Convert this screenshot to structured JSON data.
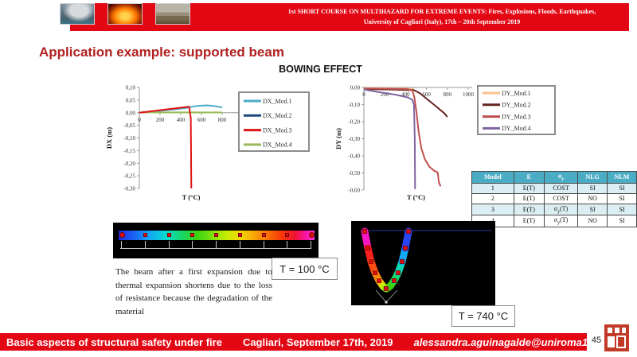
{
  "header": {
    "line1": "1st SHORT COURSE ON MULTIHAZARD FOR EXTREME EVENTS: Fires, Explosions, Floods, Earthquakes,",
    "line2": "University of Cagliari (Italy), 17th – 20th September 2019",
    "photos": [
      "volcanic-eruption-photo",
      "fire-photo",
      "flood-photo"
    ]
  },
  "slide": {
    "title": "Application example: supported beam",
    "section_heading": "BOWING EFFECT",
    "page_number": "45"
  },
  "annotations": {
    "t100": "T = 100 °C",
    "t740": "T = 740 °C",
    "paragraph": "The beam after a first expansion due to thermal expansion shortens due to the loss of resistance because the degradation of the material"
  },
  "model_table": {
    "headers": [
      "Model",
      "E",
      "σy",
      "NLG",
      "NLM"
    ],
    "rows": [
      [
        "1",
        "E(T)",
        "COST",
        "SI",
        "SI"
      ],
      [
        "2",
        "E(T)",
        "COST",
        "NO",
        "SI"
      ],
      [
        "3",
        "E(T)",
        "σy(T)",
        "SI",
        "SI"
      ],
      [
        "4",
        "E(T)",
        "σy(T)",
        "NO",
        "SI"
      ]
    ],
    "header_bg": "#4BACC6",
    "alt_row_bg": "#DAEEF3"
  },
  "chart_data": [
    {
      "id": "dx",
      "type": "line",
      "title": "",
      "xlabel": "T (°C)",
      "ylabel": "DX  (m)",
      "xlim": [
        0,
        1000
      ],
      "ylim": [
        -0.3,
        0.1
      ],
      "xticks": [
        0,
        200,
        400,
        600,
        800,
        1000
      ],
      "ytick_values": [
        0.1,
        0.05,
        0.0,
        -0.05,
        -0.1,
        -0.15,
        -0.2,
        -0.25,
        -0.3
      ],
      "ytick_labels": [
        "0,10",
        "0,05",
        "0,00",
        "-0,05",
        "-0,10",
        "-0,15",
        "-0,20",
        "-0,25",
        "-0,30"
      ],
      "grid": false,
      "legend_position": "right",
      "legend": [
        "DX_Mod.1",
        "DX_Mod.2",
        "DX_Mod.3",
        "DX_Mod.4"
      ],
      "series": [
        {
          "name": "DX_Mod.1",
          "color": "#4BACC6",
          "z": 2,
          "points": [
            [
              0,
              0
            ],
            [
              100,
              0.004
            ],
            [
              200,
              0.008
            ],
            [
              300,
              0.012
            ],
            [
              400,
              0.017
            ],
            [
              470,
              0.021
            ],
            [
              560,
              0.027
            ],
            [
              650,
              0.029
            ],
            [
              720,
              0.027
            ],
            [
              800,
              0.021
            ]
          ]
        },
        {
          "name": "DX_Mod.2",
          "color": "#1F497D",
          "z": 1,
          "points": [
            [
              0,
              0
            ],
            [
              200,
              0.008
            ],
            [
              350,
              0.014
            ],
            [
              470,
              0.02
            ]
          ]
        },
        {
          "name": "DX_Mod.3",
          "color": "#E01212",
          "z": 4,
          "points": [
            [
              0,
              0
            ],
            [
              480,
              0.024
            ],
            [
              497,
              -0.02
            ],
            [
              502,
              -0.3
            ]
          ]
        },
        {
          "name": "DX_Mod.4",
          "color": "#9BBB59",
          "z": 3,
          "points": [
            [
              0,
              0.001
            ],
            [
              800,
              0.001
            ]
          ]
        }
      ]
    },
    {
      "id": "dy",
      "type": "line",
      "title": "",
      "xlabel": "T (°C)",
      "ylabel": "DY (m)",
      "xlim": [
        0,
        1000
      ],
      "ylim": [
        -0.6,
        0.0
      ],
      "xticks": [
        0,
        200,
        400,
        600,
        800,
        1000
      ],
      "ytick_values": [
        0.0,
        -0.1,
        -0.2,
        -0.3,
        -0.4,
        -0.5,
        -0.6
      ],
      "ytick_labels": [
        "0,00",
        "-0,10",
        "-0,20",
        "-0,30",
        "-0,40",
        "-0,50",
        "-0,60"
      ],
      "grid": false,
      "legend_position": "right",
      "legend": [
        "DY_Mod.1",
        "DY_Mod.2",
        "DY_Mod.3",
        "DY_Mod.4"
      ],
      "series": [
        {
          "name": "DY_Mod.1",
          "color": "#FAC090",
          "z": 1,
          "points": [
            [
              0,
              -0.004
            ],
            [
              300,
              -0.006
            ],
            [
              480,
              -0.008
            ]
          ]
        },
        {
          "name": "DY_Mod.2",
          "color": "#632423",
          "z": 2,
          "points": [
            [
              0,
              -0.01
            ],
            [
              250,
              -0.012
            ],
            [
              480,
              -0.016
            ],
            [
              540,
              -0.035
            ],
            [
              600,
              -0.065
            ],
            [
              660,
              -0.095
            ],
            [
              720,
              -0.125
            ],
            [
              770,
              -0.15
            ],
            [
              800,
              -0.172
            ]
          ]
        },
        {
          "name": "DY_Mod.3",
          "color": "#C0504D",
          "z": 3,
          "points": [
            [
              0,
              -0.006
            ],
            [
              420,
              -0.01
            ],
            [
              465,
              -0.018
            ],
            [
              485,
              -0.06
            ],
            [
              505,
              -0.15
            ],
            [
              525,
              -0.26
            ],
            [
              550,
              -0.355
            ],
            [
              585,
              -0.42
            ],
            [
              630,
              -0.465
            ],
            [
              680,
              -0.49
            ],
            [
              705,
              -0.495
            ],
            [
              712,
              -0.52
            ],
            [
              718,
              -0.555
            ],
            [
              735,
              -0.578
            ]
          ]
        },
        {
          "name": "DY_Mod.4",
          "color": "#8064A2",
          "z": 4,
          "points": [
            [
              0,
              -0.012
            ],
            [
              150,
              -0.028
            ],
            [
              300,
              -0.042
            ],
            [
              420,
              -0.058
            ],
            [
              465,
              -0.072
            ],
            [
              480,
              -0.1
            ],
            [
              488,
              -0.3
            ],
            [
              491,
              -0.595
            ]
          ]
        }
      ]
    }
  ],
  "footer": {
    "course": "Basic aspects of structural safety under fire",
    "location_date": "Cagliari, September 17th, 2019",
    "email": "alessandra.aguinagalde@uniroma1.it",
    "logo": "red-stamp-logo"
  },
  "colors": {
    "slide_red": "#E30613",
    "title_red": "#B22222",
    "table_header": "#4BACC6"
  }
}
